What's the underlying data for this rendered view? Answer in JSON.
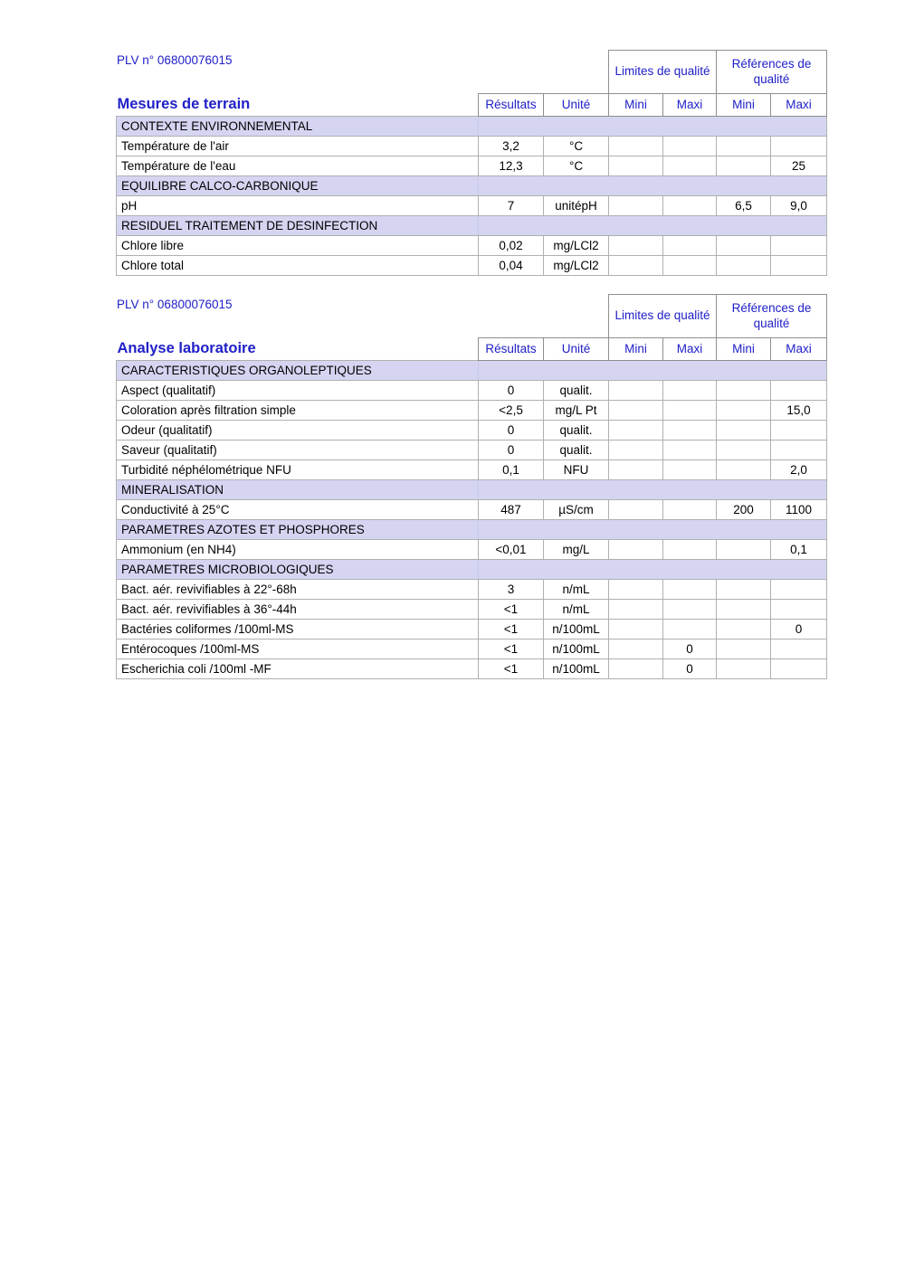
{
  "accent_color": "#2020c8",
  "section_bg": "#d5d5f2",
  "plv": "PLV n° 06800076015",
  "columns": {
    "limites": "Limites de qualité",
    "references": "Références de qualité",
    "resultats": "Résultats",
    "unite": "Unité",
    "mini": "Mini",
    "maxi": "Maxi"
  },
  "tables": [
    {
      "title": "Mesures de terrain",
      "rows": [
        {
          "type": "section",
          "label": "CONTEXTE ENVIRONNEMENTAL"
        },
        {
          "type": "data",
          "param": "Température de l'air",
          "resultat": "3,2",
          "unite": "°C",
          "lim_mini": "",
          "lim_maxi": "",
          "ref_mini": "",
          "ref_maxi": ""
        },
        {
          "type": "data",
          "param": "Température de l'eau",
          "resultat": "12,3",
          "unite": "°C",
          "lim_mini": "",
          "lim_maxi": "",
          "ref_mini": "",
          "ref_maxi": "25"
        },
        {
          "type": "section",
          "label": "EQUILIBRE CALCO-CARBONIQUE"
        },
        {
          "type": "data",
          "param": "pH",
          "resultat": "7",
          "unite": "unitépH",
          "lim_mini": "",
          "lim_maxi": "",
          "ref_mini": "6,5",
          "ref_maxi": "9,0"
        },
        {
          "type": "section",
          "label": "RESIDUEL TRAITEMENT DE DESINFECTION"
        },
        {
          "type": "data",
          "param": "Chlore libre",
          "resultat": "0,02",
          "unite": "mg/LCl2",
          "lim_mini": "",
          "lim_maxi": "",
          "ref_mini": "",
          "ref_maxi": ""
        },
        {
          "type": "data",
          "param": "Chlore total",
          "resultat": "0,04",
          "unite": "mg/LCl2",
          "lim_mini": "",
          "lim_maxi": "",
          "ref_mini": "",
          "ref_maxi": ""
        }
      ]
    },
    {
      "title": "Analyse laboratoire",
      "rows": [
        {
          "type": "section",
          "label": "CARACTERISTIQUES ORGANOLEPTIQUES"
        },
        {
          "type": "data",
          "param": "Aspect (qualitatif)",
          "resultat": "0",
          "unite": "qualit.",
          "lim_mini": "",
          "lim_maxi": "",
          "ref_mini": "",
          "ref_maxi": ""
        },
        {
          "type": "data",
          "param": "Coloration après filtration simple",
          "resultat": "<2,5",
          "unite": "mg/L Pt",
          "lim_mini": "",
          "lim_maxi": "",
          "ref_mini": "",
          "ref_maxi": "15,0"
        },
        {
          "type": "data",
          "param": "Odeur (qualitatif)",
          "resultat": "0",
          "unite": "qualit.",
          "lim_mini": "",
          "lim_maxi": "",
          "ref_mini": "",
          "ref_maxi": ""
        },
        {
          "type": "data",
          "param": "Saveur (qualitatif)",
          "resultat": "0",
          "unite": "qualit.",
          "lim_mini": "",
          "lim_maxi": "",
          "ref_mini": "",
          "ref_maxi": ""
        },
        {
          "type": "data",
          "param": "Turbidité néphélométrique NFU",
          "resultat": "0,1",
          "unite": "NFU",
          "lim_mini": "",
          "lim_maxi": "",
          "ref_mini": "",
          "ref_maxi": "2,0"
        },
        {
          "type": "section",
          "label": "MINERALISATION"
        },
        {
          "type": "data",
          "param": "Conductivité à 25°C",
          "resultat": "487",
          "unite": "µS/cm",
          "lim_mini": "",
          "lim_maxi": "",
          "ref_mini": "200",
          "ref_maxi": "1100"
        },
        {
          "type": "section",
          "label": "PARAMETRES AZOTES ET PHOSPHORES"
        },
        {
          "type": "data",
          "param": "Ammonium (en NH4)",
          "resultat": "<0,01",
          "unite": "mg/L",
          "lim_mini": "",
          "lim_maxi": "",
          "ref_mini": "",
          "ref_maxi": "0,1"
        },
        {
          "type": "section",
          "label": "PARAMETRES MICROBIOLOGIQUES"
        },
        {
          "type": "data",
          "param": "Bact. aér. revivifiables à 22°-68h",
          "resultat": "3",
          "unite": "n/mL",
          "lim_mini": "",
          "lim_maxi": "",
          "ref_mini": "",
          "ref_maxi": ""
        },
        {
          "type": "data",
          "param": "Bact. aér. revivifiables à 36°-44h",
          "resultat": "<1",
          "unite": "n/mL",
          "lim_mini": "",
          "lim_maxi": "",
          "ref_mini": "",
          "ref_maxi": ""
        },
        {
          "type": "data",
          "param": "Bactéries coliformes /100ml-MS",
          "resultat": "<1",
          "unite": "n/100mL",
          "lim_mini": "",
          "lim_maxi": "",
          "ref_mini": "",
          "ref_maxi": "0"
        },
        {
          "type": "data",
          "param": "Entérocoques /100ml-MS",
          "resultat": "<1",
          "unite": "n/100mL",
          "lim_mini": "",
          "lim_maxi": "0",
          "ref_mini": "",
          "ref_maxi": ""
        },
        {
          "type": "data",
          "param": "Escherichia coli /100ml -MF",
          "resultat": "<1",
          "unite": "n/100mL",
          "lim_mini": "",
          "lim_maxi": "0",
          "ref_mini": "",
          "ref_maxi": ""
        }
      ]
    }
  ]
}
